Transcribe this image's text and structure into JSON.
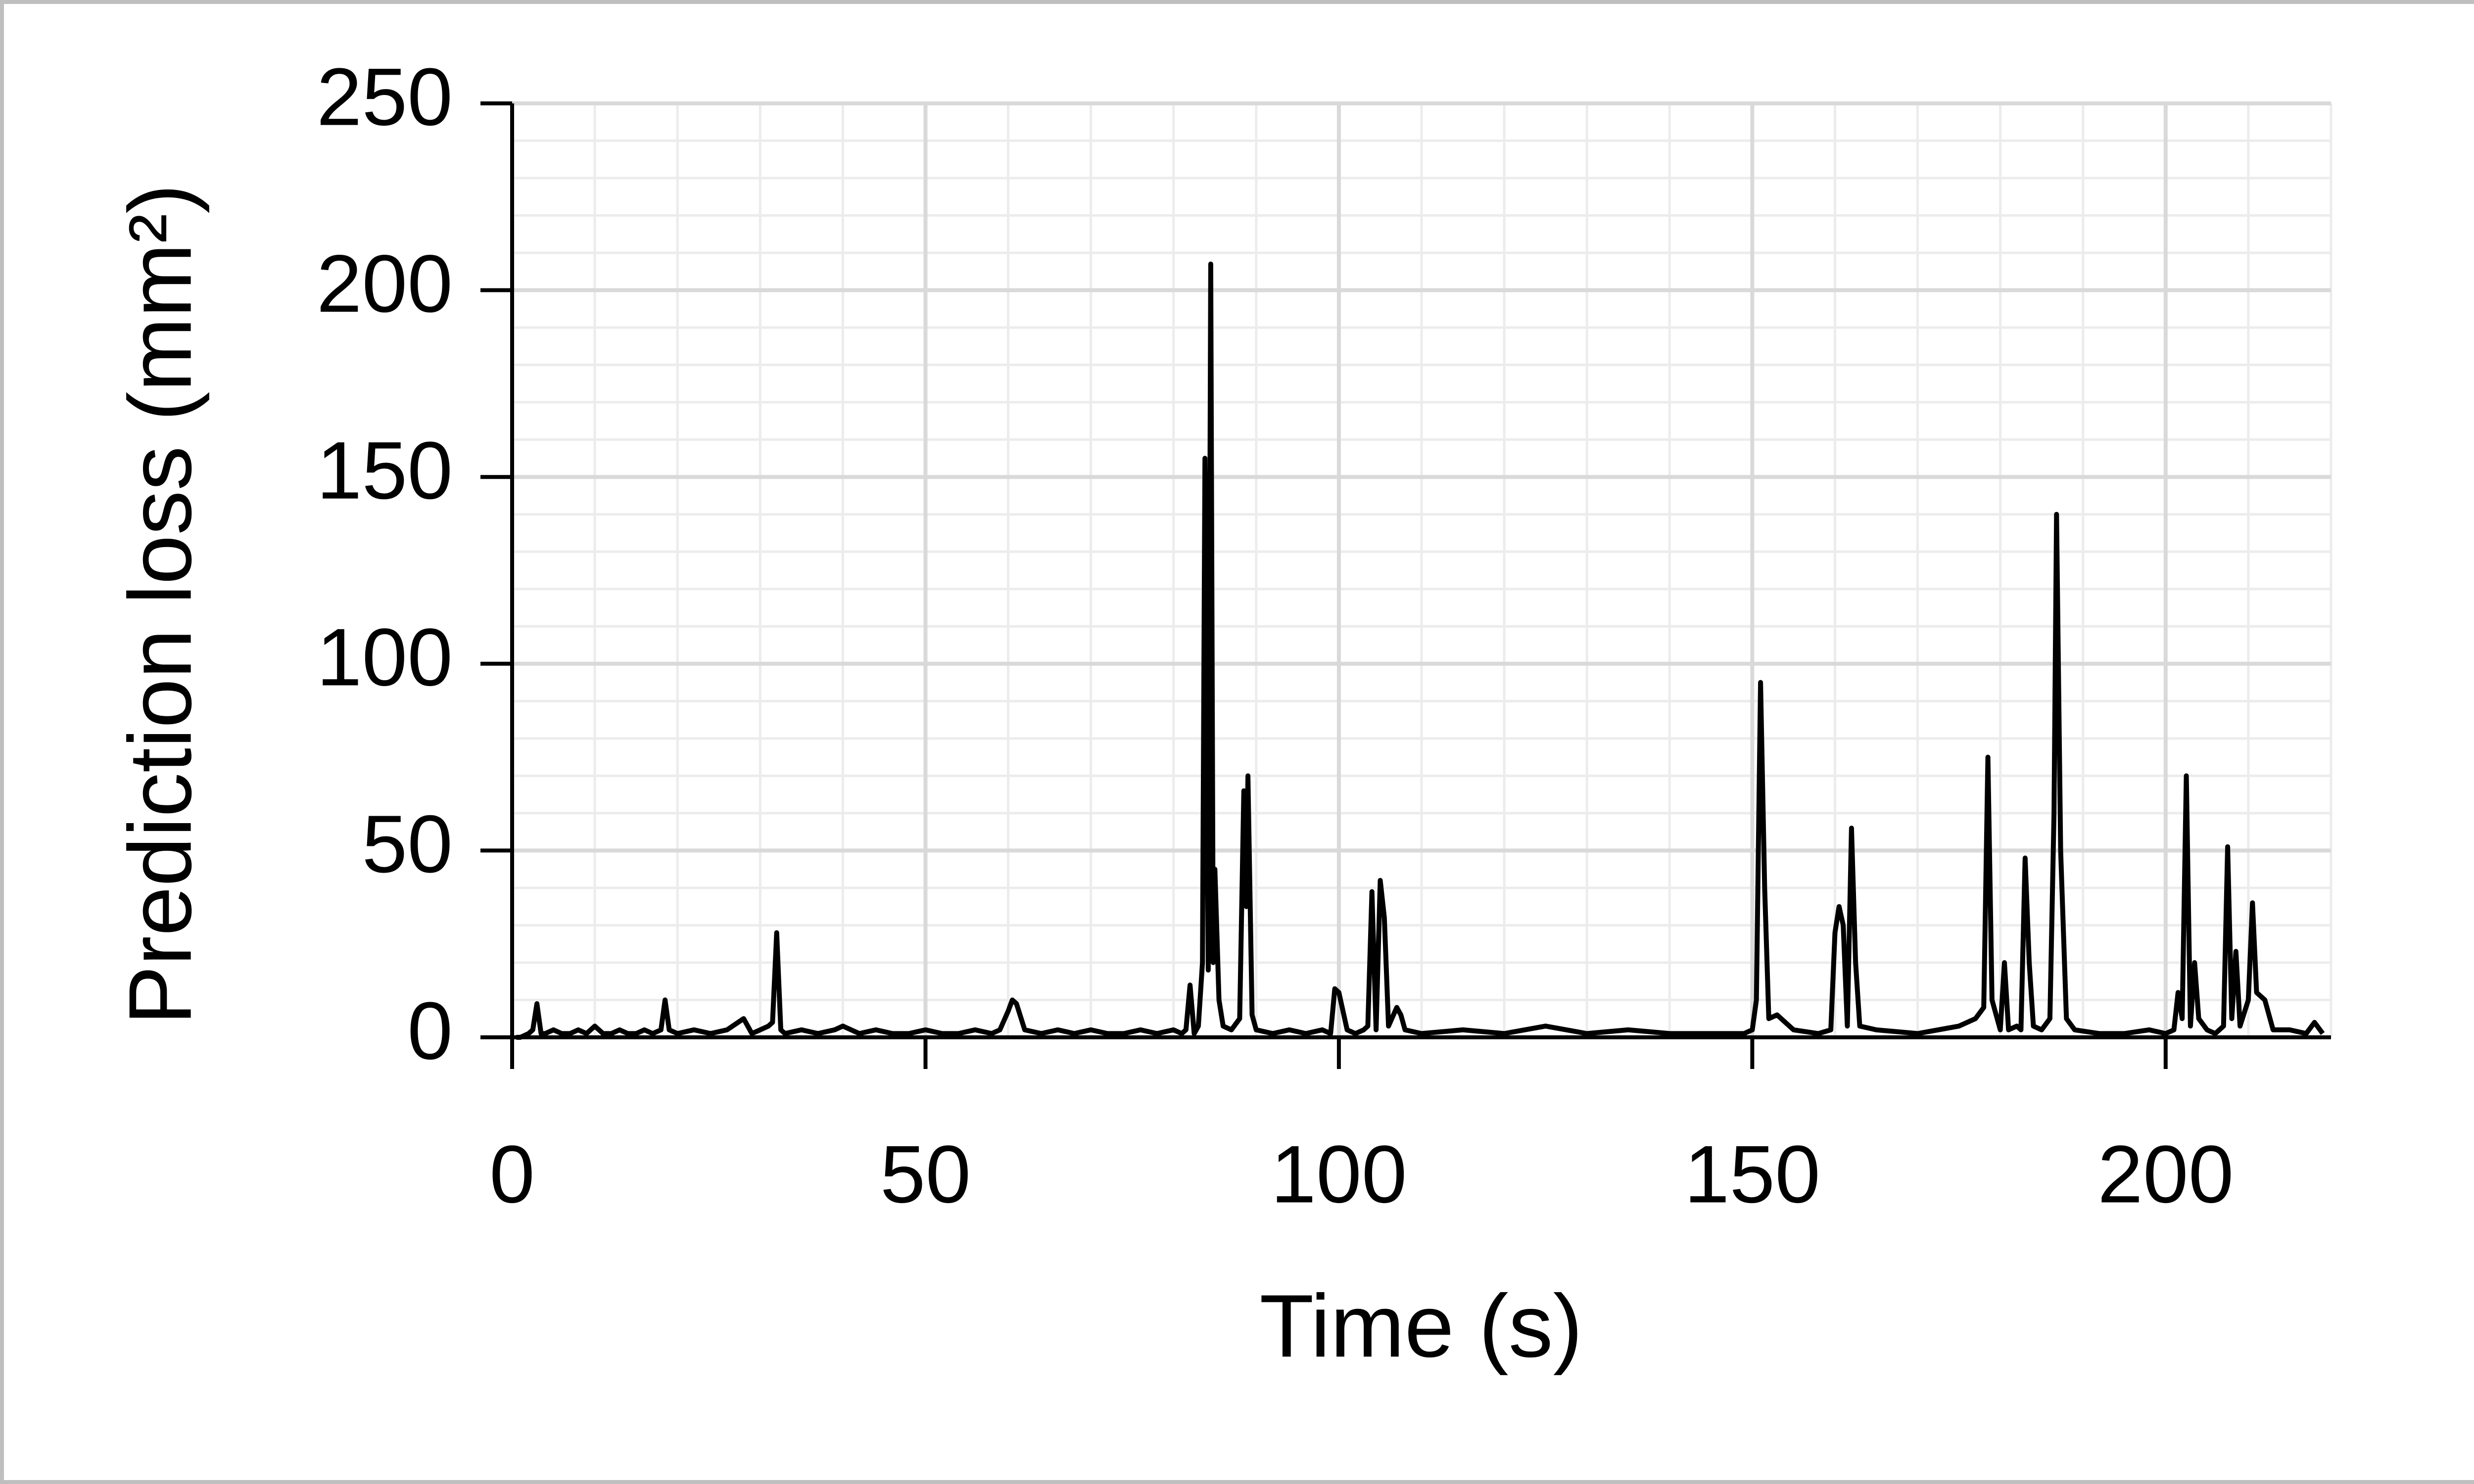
{
  "chart_data": {
    "type": "line",
    "xlabel": "Time (s)",
    "ylabel": "Prediction loss (mm²)",
    "x": [
      0.5,
      1,
      2,
      2.5,
      3,
      3.5,
      4,
      5,
      6,
      7,
      8,
      9,
      10,
      11,
      12,
      13,
      14,
      15,
      16,
      17,
      18,
      18.5,
      19,
      20,
      22,
      24,
      26,
      28,
      29,
      30,
      31,
      31.5,
      32,
      32.5,
      33,
      35,
      37,
      39,
      40,
      42,
      44,
      46,
      48,
      50,
      52,
      54,
      56,
      58,
      59,
      60,
      60.5,
      61,
      62,
      64,
      66,
      68,
      70,
      72,
      74,
      76,
      78,
      80,
      81,
      81.5,
      82,
      82.5,
      83,
      83.5,
      83.8,
      84.2,
      84.5,
      84.8,
      85,
      85.5,
      86,
      87,
      88,
      88.5,
      88.8,
      89,
      89.5,
      90,
      92,
      94,
      96,
      98,
      99,
      99.5,
      100,
      101,
      102,
      103,
      103.5,
      104,
      104.5,
      105,
      105.5,
      106,
      107,
      107.5,
      108,
      110,
      115,
      120,
      125,
      130,
      135,
      140,
      145,
      149,
      150,
      150.5,
      151,
      151.5,
      152,
      153,
      155,
      158,
      159.5,
      160,
      160.5,
      161,
      161.5,
      162,
      162.5,
      163,
      165,
      170,
      175,
      177,
      178,
      178.5,
      179,
      180,
      180.5,
      181,
      182,
      182.5,
      183,
      183.5,
      184,
      185,
      186,
      186.5,
      186.8,
      187.3,
      188,
      189,
      192,
      195,
      198,
      200,
      201,
      201.5,
      202,
      202.5,
      203,
      203.5,
      204,
      205,
      206,
      207,
      207.5,
      208,
      208.5,
      209,
      210,
      210.5,
      211,
      212,
      213,
      215,
      217,
      218,
      219
    ],
    "values": [
      0,
      0,
      1,
      2,
      9,
      1,
      1,
      2,
      1,
      1,
      2,
      1,
      3,
      1,
      1,
      2,
      1,
      1,
      2,
      1,
      2,
      10,
      2,
      1,
      2,
      1,
      2,
      5,
      1,
      2,
      3,
      4,
      28,
      2,
      1,
      2,
      1,
      2,
      3,
      1,
      2,
      1,
      1,
      2,
      1,
      1,
      2,
      1,
      2,
      7,
      10,
      9,
      2,
      1,
      2,
      1,
      2,
      1,
      1,
      2,
      1,
      2,
      1,
      2,
      14,
      1,
      3,
      20,
      155,
      18,
      207,
      20,
      45,
      10,
      3,
      2,
      5,
      66,
      35,
      70,
      6,
      2,
      1,
      2,
      1,
      2,
      1,
      13,
      12,
      2,
      1,
      2,
      3,
      39,
      2,
      42,
      32,
      3,
      8,
      6,
      2,
      1,
      2,
      1,
      3,
      1,
      2,
      1,
      1,
      1,
      2,
      10,
      95,
      40,
      5,
      6,
      2,
      1,
      2,
      28,
      35,
      30,
      3,
      56,
      20,
      3,
      2,
      1,
      3,
      5,
      8,
      75,
      10,
      2,
      20,
      2,
      3,
      2,
      48,
      20,
      3,
      2,
      5,
      60,
      140,
      50,
      5,
      2,
      1,
      1,
      2,
      1,
      2,
      12,
      5,
      70,
      3,
      20,
      5,
      2,
      1,
      3,
      51,
      5,
      23,
      3,
      10,
      36,
      12,
      10,
      2,
      2,
      1,
      4,
      1
    ],
    "color": "#000000",
    "xlim": [
      0,
      220
    ],
    "xticks": [
      0,
      50,
      100,
      150,
      200
    ],
    "ylim": [
      0,
      250
    ],
    "yticks": [
      0,
      50,
      100,
      150,
      200,
      250
    ],
    "grid": true,
    "minor_per_major": 5
  }
}
